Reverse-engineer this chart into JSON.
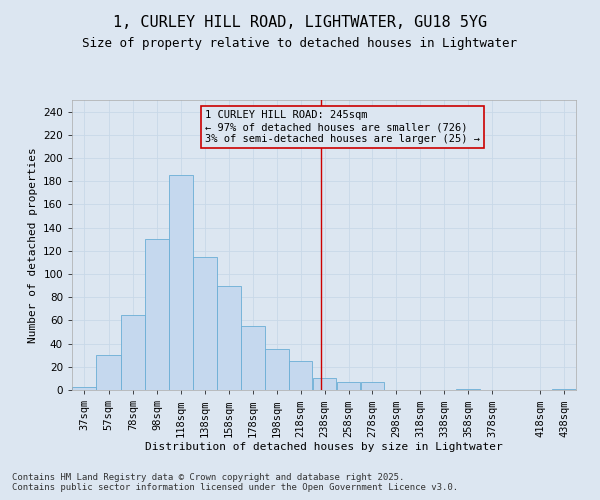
{
  "title_line1": "1, CURLEY HILL ROAD, LIGHTWATER, GU18 5YG",
  "title_line2": "Size of property relative to detached houses in Lightwater",
  "xlabel": "Distribution of detached houses by size in Lightwater",
  "ylabel": "Number of detached properties",
  "footnote_line1": "Contains HM Land Registry data © Crown copyright and database right 2025.",
  "footnote_line2": "Contains public sector information licensed under the Open Government Licence v3.0.",
  "annotation_line1": "1 CURLEY HILL ROAD: 245sqm",
  "annotation_line2": "← 97% of detached houses are smaller (726)",
  "annotation_line3": "3% of semi-detached houses are larger (25) →",
  "property_size": 245,
  "bar_left_edges": [
    37,
    57,
    78,
    98,
    118,
    138,
    158,
    178,
    198,
    218,
    238,
    258,
    278,
    298,
    318,
    338,
    358,
    378,
    418,
    438
  ],
  "bar_widths": [
    20,
    21,
    20,
    20,
    20,
    20,
    20,
    20,
    20,
    20,
    20,
    20,
    20,
    20,
    20,
    20,
    20,
    20,
    20,
    20
  ],
  "bar_heights": [
    3,
    30,
    65,
    130,
    185,
    115,
    90,
    55,
    35,
    25,
    10,
    7,
    7,
    0,
    0,
    0,
    1,
    0,
    0,
    1
  ],
  "tick_labels": [
    "37sqm",
    "57sqm",
    "78sqm",
    "98sqm",
    "118sqm",
    "138sqm",
    "158sqm",
    "178sqm",
    "198sqm",
    "218sqm",
    "238sqm",
    "258sqm",
    "278sqm",
    "298sqm",
    "318sqm",
    "338sqm",
    "358sqm",
    "378sqm",
    "418sqm",
    "438sqm"
  ],
  "yticks": [
    0,
    20,
    40,
    60,
    80,
    100,
    120,
    140,
    160,
    180,
    200,
    220,
    240
  ],
  "ylim": [
    0,
    250
  ],
  "xlim": [
    37,
    458
  ],
  "bar_color": "#c5d8ee",
  "bar_edge_color": "#6aadd5",
  "grid_color": "#c8d8e8",
  "bg_color": "#dce6f1",
  "vline_color": "#cc0000",
  "title_fontsize": 11,
  "subtitle_fontsize": 9,
  "axis_label_fontsize": 8,
  "tick_fontsize": 7.5,
  "annotation_fontsize": 7.5,
  "footnote_fontsize": 6.5
}
